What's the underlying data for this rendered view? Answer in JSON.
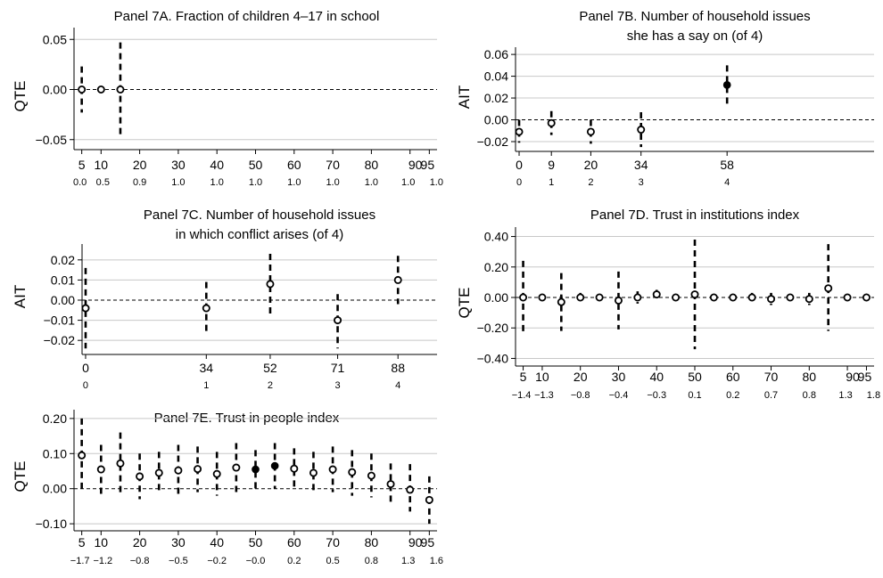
{
  "chart_data": [
    {
      "id": "7A",
      "type": "scatter",
      "title": [
        "Panel 7A. Fraction of children 4–17 in school"
      ],
      "ylabel": "QTE",
      "xlim": [
        3,
        97
      ],
      "ylim": [
        -0.06,
        0.06
      ],
      "yticks": [
        -0.05,
        0.0,
        0.05
      ],
      "ytick_labels": [
        "−0.05",
        "0.00",
        "0.05"
      ],
      "grid_values": [
        -0.05,
        0.0,
        0.05
      ],
      "xticks": [
        5,
        10,
        20,
        30,
        40,
        50,
        60,
        70,
        80,
        90,
        95
      ],
      "xtick_labels": [
        "5",
        "10",
        "20",
        "30",
        "40",
        "50",
        "60",
        "70",
        "80",
        "90",
        "95"
      ],
      "xtick_values": [
        "0.0",
        "0.5",
        "0.9",
        "1.0",
        "1.0",
        "1.0",
        "1.0",
        "1.0",
        "1.0",
        "1.0",
        "1.0"
      ],
      "points": [
        {
          "x": 5,
          "y": 0.0,
          "lo": -0.023,
          "hi": 0.023,
          "filled": false
        },
        {
          "x": 10,
          "y": 0.0,
          "lo": 0.0,
          "hi": 0.0,
          "filled": false
        },
        {
          "x": 15,
          "y": 0.0,
          "lo": -0.047,
          "hi": 0.047,
          "filled": false
        }
      ]
    },
    {
      "id": "7B",
      "type": "scatter",
      "title": [
        "Panel 7B. Number of household issues",
        "she has a say on (of 4)"
      ],
      "ylabel": "AIT",
      "xlim": [
        -1,
        99
      ],
      "ylim": [
        -0.029,
        0.065
      ],
      "yticks": [
        -0.02,
        0.0,
        0.02,
        0.04,
        0.06
      ],
      "ytick_labels": [
        "−0.02",
        "0.00",
        "0.02",
        "0.04",
        "0.06"
      ],
      "grid_values": [
        -0.02,
        0.0,
        0.02,
        0.04,
        0.06
      ],
      "xticks": [
        0,
        9,
        20,
        34,
        58
      ],
      "xtick_labels": [
        "0",
        "9",
        "20",
        "34",
        "58"
      ],
      "xtick_values": [
        "0",
        "1",
        "2",
        "3",
        "4"
      ],
      "points": [
        {
          "x": 0,
          "y": -0.011,
          "lo": -0.021,
          "hi": 0.0,
          "filled": false
        },
        {
          "x": 9,
          "y": -0.003,
          "lo": -0.014,
          "hi": 0.008,
          "filled": false
        },
        {
          "x": 20,
          "y": -0.011,
          "lo": -0.022,
          "hi": 0.0,
          "filled": false
        },
        {
          "x": 34,
          "y": -0.009,
          "lo": -0.025,
          "hi": 0.007,
          "filled": false
        },
        {
          "x": 58,
          "y": 0.032,
          "lo": 0.014,
          "hi": 0.05,
          "filled": true
        }
      ]
    },
    {
      "id": "7C",
      "type": "scatter",
      "title": [
        "Panel 7C. Number of household issues",
        "in which conflict arises (of 4)"
      ],
      "ylabel": "AIT",
      "xlim": [
        -1,
        99
      ],
      "ylim": [
        -0.027,
        0.027
      ],
      "yticks": [
        -0.02,
        -0.01,
        0.0,
        0.01,
        0.02
      ],
      "ytick_labels": [
        "−0.02",
        "−0.01",
        "0.00",
        "0.01",
        "0.02"
      ],
      "grid_values": [
        -0.02,
        -0.01,
        0.0,
        0.01,
        0.02
      ],
      "xticks": [
        0,
        34,
        52,
        71,
        88
      ],
      "xtick_labels": [
        "0",
        "34",
        "52",
        "71",
        "88"
      ],
      "xtick_values": [
        "0",
        "1",
        "2",
        "3",
        "4"
      ],
      "points": [
        {
          "x": 0,
          "y": -0.004,
          "lo": -0.024,
          "hi": 0.016,
          "filled": false
        },
        {
          "x": 34,
          "y": -0.004,
          "lo": -0.017,
          "hi": 0.009,
          "filled": false
        },
        {
          "x": 52,
          "y": 0.008,
          "lo": -0.007,
          "hi": 0.023,
          "filled": false
        },
        {
          "x": 71,
          "y": -0.01,
          "lo": -0.024,
          "hi": 0.003,
          "filled": false
        },
        {
          "x": 88,
          "y": 0.01,
          "lo": -0.002,
          "hi": 0.022,
          "filled": false
        }
      ]
    },
    {
      "id": "7D",
      "type": "scatter",
      "title": [
        "Panel 7D. Trust in institutions index"
      ],
      "ylabel": "QTE",
      "xlim": [
        3,
        97
      ],
      "ylim": [
        -0.45,
        0.45
      ],
      "yticks": [
        -0.4,
        -0.2,
        0.0,
        0.2,
        0.4
      ],
      "ytick_labels": [
        "−0.40",
        "−0.20",
        "0.00",
        "0.20",
        "0.40"
      ],
      "grid_values": [
        -0.4,
        -0.2,
        0.0,
        0.2,
        0.4
      ],
      "xticks": [
        5,
        10,
        20,
        30,
        40,
        50,
        60,
        70,
        80,
        90,
        95
      ],
      "xtick_labels": [
        "5",
        "10",
        "20",
        "30",
        "40",
        "50",
        "60",
        "70",
        "80",
        "90",
        "95"
      ],
      "xtick_values": [
        "−1.4",
        "−1.3",
        "−0.8",
        "−0.4",
        "−0.3",
        "0.1",
        "0.2",
        "0.7",
        "0.8",
        "1.3",
        "1.8"
      ],
      "points": [
        {
          "x": 5,
          "y": 0.0,
          "lo": -0.24,
          "hi": 0.24,
          "filled": false
        },
        {
          "x": 10,
          "y": 0.0,
          "lo": -0.01,
          "hi": 0.01,
          "filled": false
        },
        {
          "x": 15,
          "y": -0.03,
          "lo": -0.22,
          "hi": 0.16,
          "filled": false
        },
        {
          "x": 20,
          "y": 0.0,
          "lo": -0.03,
          "hi": 0.03,
          "filled": false
        },
        {
          "x": 25,
          "y": 0.0,
          "lo": -0.01,
          "hi": 0.01,
          "filled": false
        },
        {
          "x": 30,
          "y": -0.02,
          "lo": -0.21,
          "hi": 0.17,
          "filled": false
        },
        {
          "x": 35,
          "y": 0.0,
          "lo": -0.04,
          "hi": 0.04,
          "filled": false
        },
        {
          "x": 40,
          "y": 0.02,
          "lo": -0.01,
          "hi": 0.05,
          "filled": false
        },
        {
          "x": 45,
          "y": 0.0,
          "lo": -0.01,
          "hi": 0.01,
          "filled": false
        },
        {
          "x": 50,
          "y": 0.02,
          "lo": -0.34,
          "hi": 0.38,
          "filled": false
        },
        {
          "x": 55,
          "y": 0.0,
          "lo": -0.01,
          "hi": 0.01,
          "filled": false
        },
        {
          "x": 60,
          "y": 0.0,
          "lo": -0.01,
          "hi": 0.01,
          "filled": false
        },
        {
          "x": 65,
          "y": 0.0,
          "lo": -0.03,
          "hi": 0.03,
          "filled": false
        },
        {
          "x": 70,
          "y": -0.01,
          "lo": -0.05,
          "hi": 0.03,
          "filled": false
        },
        {
          "x": 75,
          "y": 0.0,
          "lo": -0.01,
          "hi": 0.01,
          "filled": false
        },
        {
          "x": 80,
          "y": -0.01,
          "lo": -0.05,
          "hi": 0.03,
          "filled": false
        },
        {
          "x": 85,
          "y": 0.06,
          "lo": -0.22,
          "hi": 0.35,
          "filled": false
        },
        {
          "x": 90,
          "y": 0.0,
          "lo": -0.01,
          "hi": 0.01,
          "filled": false
        },
        {
          "x": 95,
          "y": 0.0,
          "lo": -0.02,
          "hi": 0.02,
          "filled": false
        }
      ]
    },
    {
      "id": "7E",
      "type": "scatter",
      "title": [
        "Panel 7E. Trust in people index"
      ],
      "ylabel": "QTE",
      "xlim": [
        3,
        97
      ],
      "ylim": [
        -0.12,
        0.22
      ],
      "yticks": [
        -0.1,
        0.0,
        0.1,
        0.2
      ],
      "ytick_labels": [
        "−0.10",
        "0.00",
        "0.10",
        "0.20"
      ],
      "grid_values": [
        -0.1,
        0.0,
        0.1,
        0.2
      ],
      "xticks": [
        5,
        10,
        20,
        30,
        40,
        50,
        60,
        70,
        80,
        90,
        95
      ],
      "xtick_labels": [
        "5",
        "10",
        "20",
        "30",
        "40",
        "50",
        "60",
        "70",
        "80",
        "90",
        "95"
      ],
      "xtick_values": [
        "−1.7",
        "−1.2",
        "−0.8",
        "−0.5",
        "−0.2",
        "−0.0",
        "0.2",
        "0.5",
        "0.8",
        "1.3",
        "1.6"
      ],
      "points": [
        {
          "x": 5,
          "y": 0.095,
          "lo": -0.01,
          "hi": 0.2,
          "filled": false
        },
        {
          "x": 10,
          "y": 0.055,
          "lo": -0.015,
          "hi": 0.125,
          "filled": false
        },
        {
          "x": 15,
          "y": 0.072,
          "lo": -0.015,
          "hi": 0.16,
          "filled": false
        },
        {
          "x": 20,
          "y": 0.035,
          "lo": -0.03,
          "hi": 0.1,
          "filled": false
        },
        {
          "x": 25,
          "y": 0.045,
          "lo": -0.015,
          "hi": 0.105,
          "filled": false
        },
        {
          "x": 30,
          "y": 0.052,
          "lo": -0.02,
          "hi": 0.125,
          "filled": false
        },
        {
          "x": 35,
          "y": 0.056,
          "lo": -0.01,
          "hi": 0.12,
          "filled": false
        },
        {
          "x": 40,
          "y": 0.042,
          "lo": -0.02,
          "hi": 0.105,
          "filled": false
        },
        {
          "x": 45,
          "y": 0.06,
          "lo": -0.01,
          "hi": 0.13,
          "filled": false
        },
        {
          "x": 50,
          "y": 0.055,
          "lo": 0.0,
          "hi": 0.11,
          "filled": true
        },
        {
          "x": 55,
          "y": 0.065,
          "lo": 0.0,
          "hi": 0.13,
          "filled": true
        },
        {
          "x": 60,
          "y": 0.057,
          "lo": 0.0,
          "hi": 0.115,
          "filled": false
        },
        {
          "x": 65,
          "y": 0.045,
          "lo": -0.015,
          "hi": 0.105,
          "filled": false
        },
        {
          "x": 70,
          "y": 0.055,
          "lo": -0.01,
          "hi": 0.12,
          "filled": false
        },
        {
          "x": 75,
          "y": 0.047,
          "lo": -0.02,
          "hi": 0.11,
          "filled": false
        },
        {
          "x": 80,
          "y": 0.037,
          "lo": -0.025,
          "hi": 0.1,
          "filled": false
        },
        {
          "x": 85,
          "y": 0.013,
          "lo": -0.045,
          "hi": 0.072,
          "filled": false
        },
        {
          "x": 90,
          "y": -0.003,
          "lo": -0.065,
          "hi": 0.07,
          "filled": false
        },
        {
          "x": 95,
          "y": -0.032,
          "lo": -0.1,
          "hi": 0.035,
          "filled": false
        }
      ]
    }
  ]
}
